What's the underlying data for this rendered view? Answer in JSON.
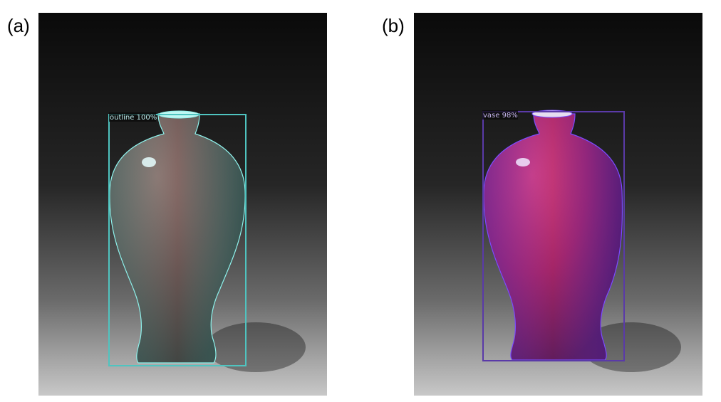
{
  "figure": {
    "panels": [
      {
        "label": "(a)",
        "detection": {
          "text": "outline 100%",
          "class": "outline",
          "score_percent": 100,
          "box_color": "#4fc4c0",
          "mask_color": "#3fe0d6"
        },
        "vase_tone": "#8a5a57"
      },
      {
        "label": "(b)",
        "detection": {
          "text": "vase 98%",
          "class": "vase",
          "score_percent": 98,
          "box_color": "#5a3aa8",
          "mask_color": "#6a3cf0"
        },
        "vase_tone": "#b2245f"
      }
    ],
    "background": {
      "top_color": "#0a0a0a",
      "bottom_color": "#c8c8c8"
    }
  }
}
